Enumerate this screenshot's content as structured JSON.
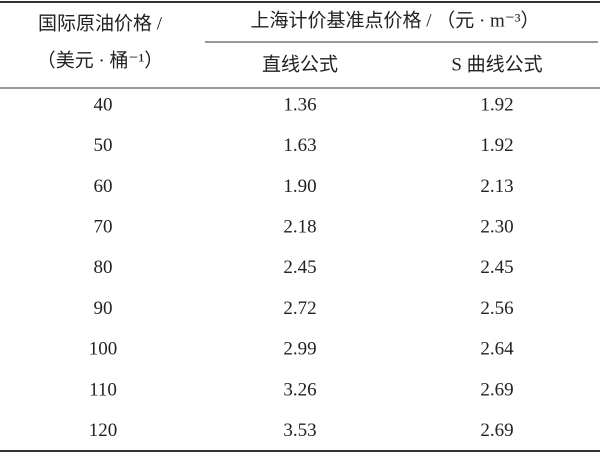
{
  "table": {
    "header": {
      "first_column": [
        "国际原油价格 /",
        "（美元 · 桶⁻¹）"
      ],
      "group": "上海计价基准点价格 / （元 · m⁻³）",
      "columns": [
        "直线公式",
        "S 曲线公式"
      ]
    },
    "rows": [
      [
        "40",
        "1.36",
        "1.92"
      ],
      [
        "50",
        "1.63",
        "1.92"
      ],
      [
        "60",
        "1.90",
        "2.13"
      ],
      [
        "70",
        "2.18",
        "2.30"
      ],
      [
        "80",
        "2.45",
        "2.45"
      ],
      [
        "90",
        "2.72",
        "2.56"
      ],
      [
        "100",
        "2.99",
        "2.64"
      ],
      [
        "110",
        "3.26",
        "2.69"
      ],
      [
        "120",
        "3.53",
        "2.69"
      ]
    ]
  }
}
